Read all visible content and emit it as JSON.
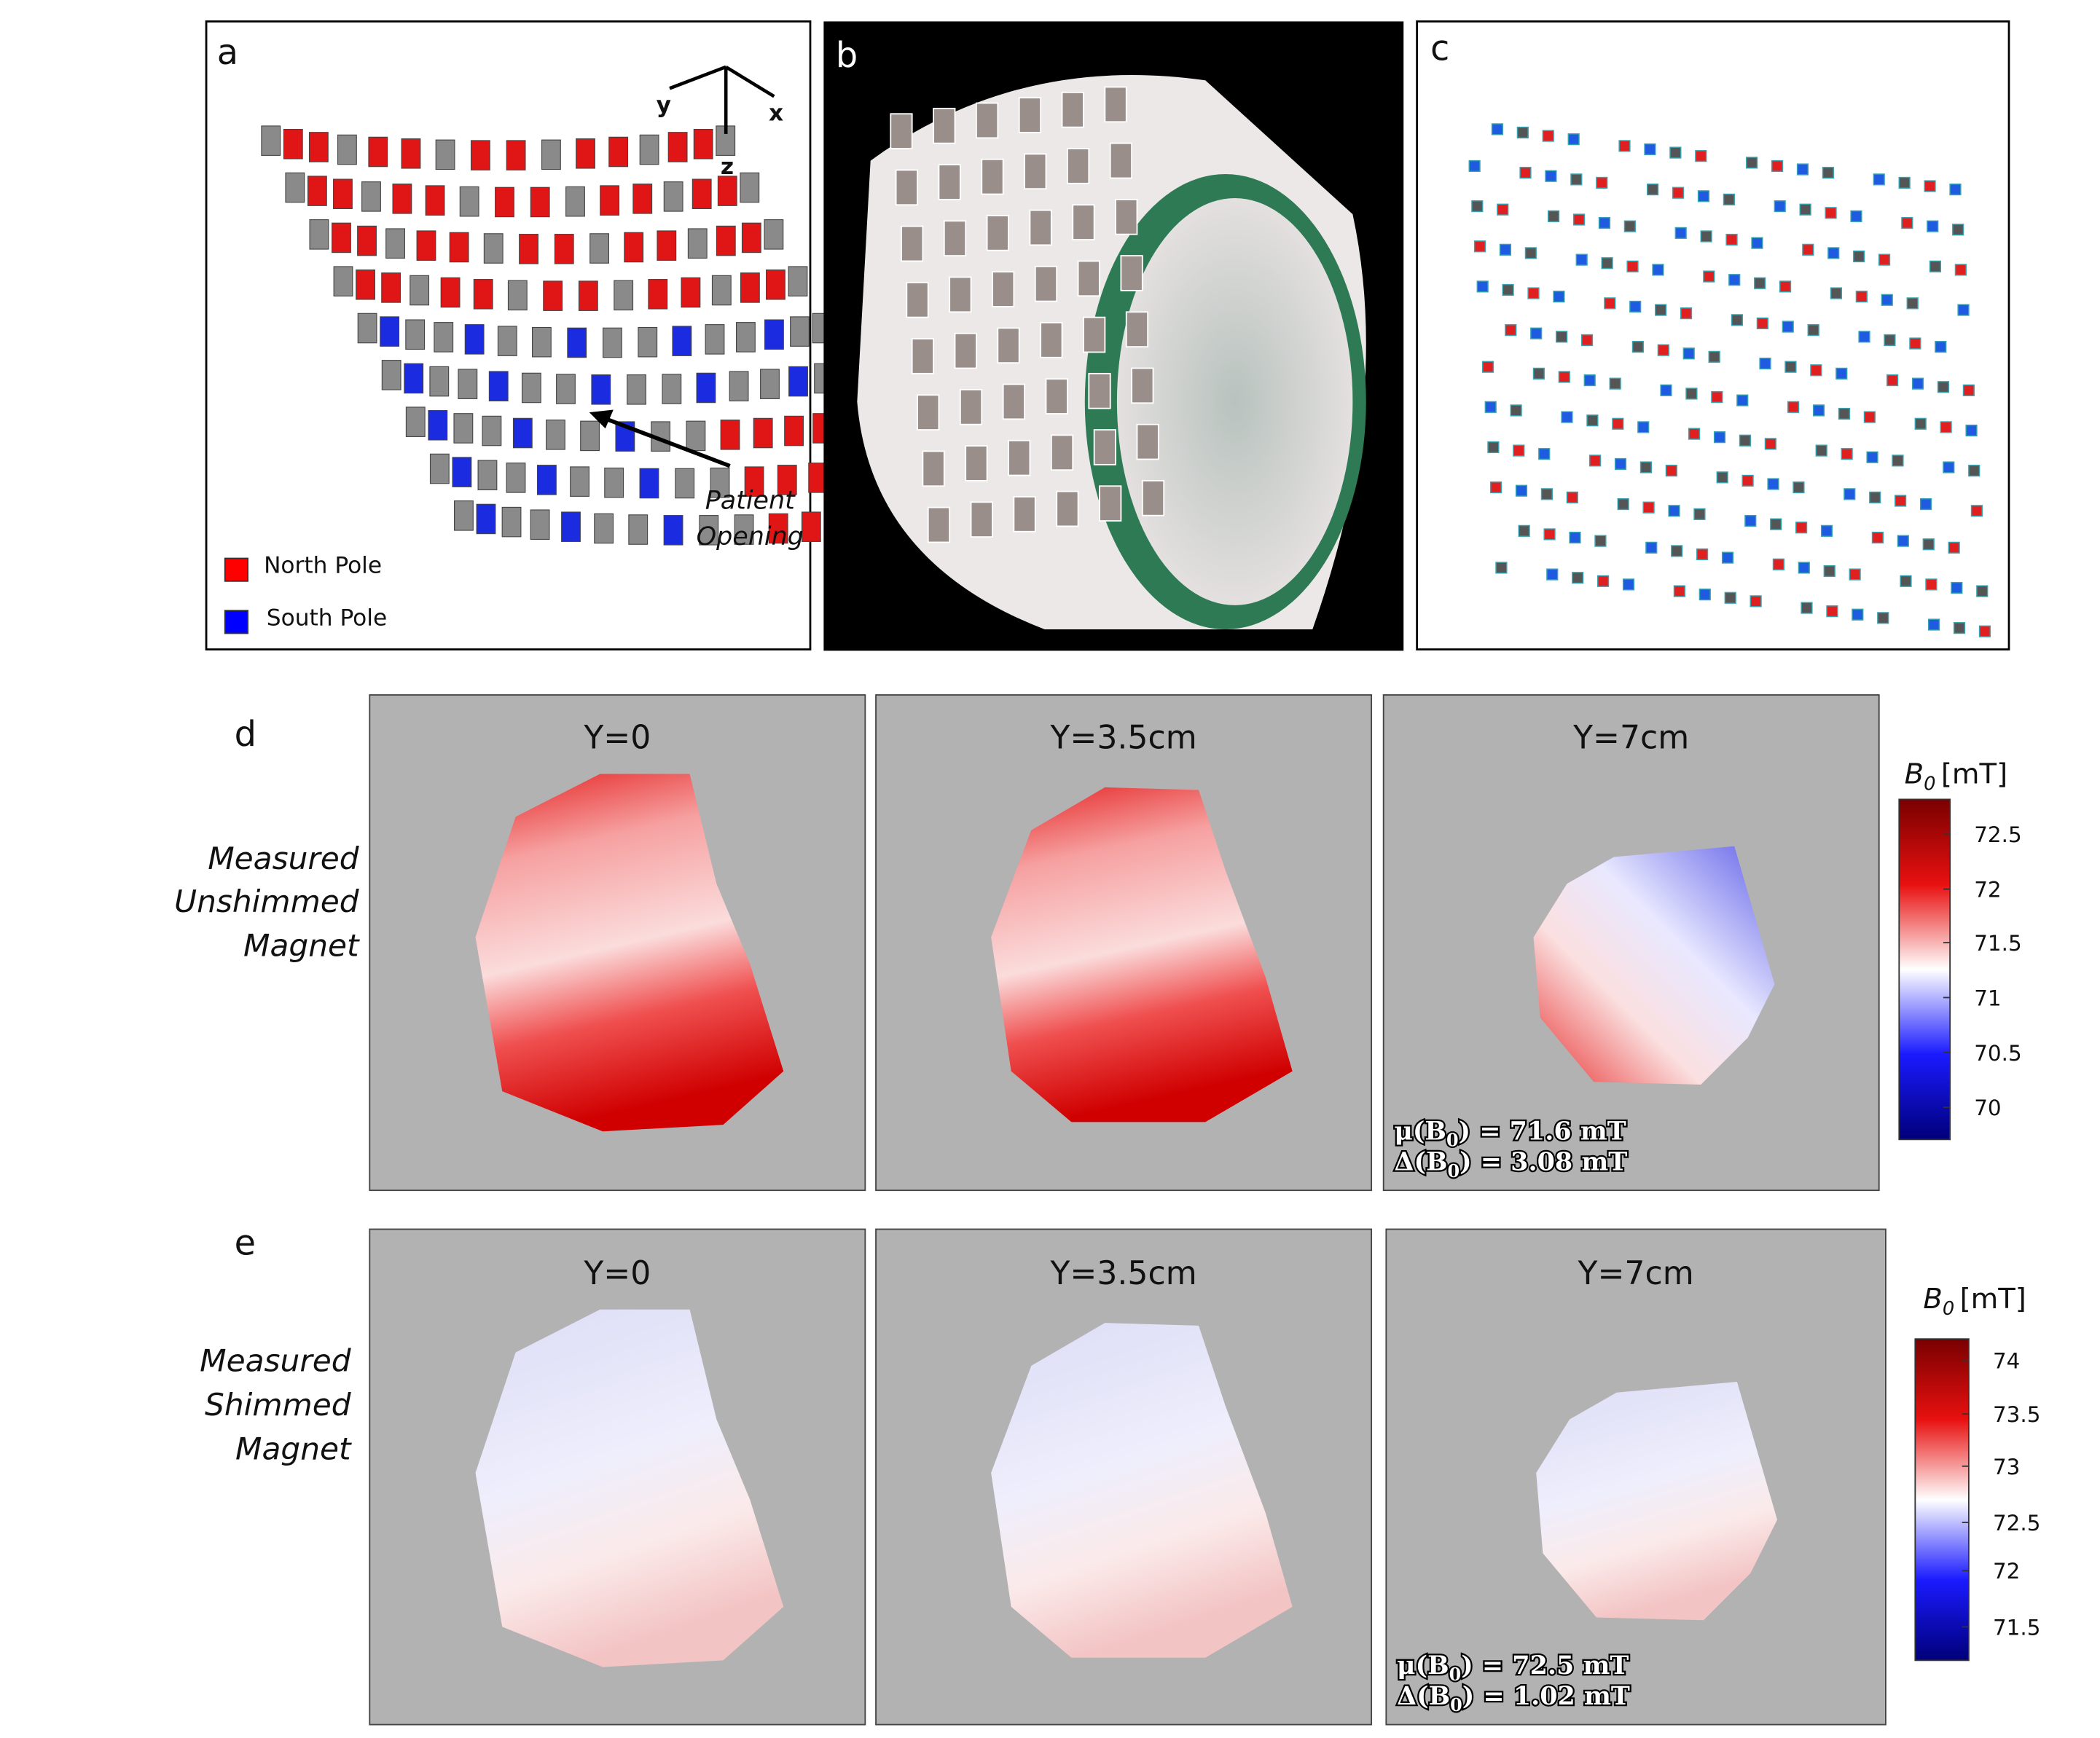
{
  "panel_a": {
    "label": "a",
    "axes": [
      "y",
      "x",
      "z"
    ],
    "annotation": [
      "Patient",
      "Opening"
    ],
    "legend": [
      "North Pole",
      "South Pole"
    ]
  },
  "panel_b": {
    "label": "b"
  },
  "panel_c": {
    "label": "c"
  },
  "panel_d": {
    "label": "d",
    "row_label": [
      "Measured",
      "Unshimmed",
      "Magnet"
    ],
    "maps": [
      "Y=0",
      "Y=3.5cm",
      "Y=7cm"
    ],
    "stats": [
      {
        "prefix": "μ(B",
        "subscript": "0",
        "suffix": ") = 71.6 mT"
      },
      {
        "prefix": "Δ(B",
        "subscript": "0",
        "suffix": ") = 3.08 mT"
      }
    ],
    "colorbar": {
      "symbol": "B",
      "subscript": "0",
      "unit": "[mT]",
      "ticks": [
        "72.5",
        "72",
        "71.5",
        "71",
        "70.5",
        "70"
      ]
    }
  },
  "panel_e": {
    "label": "e",
    "row_label": [
      "Measured",
      "Shimmed",
      "Magnet"
    ],
    "maps": [
      "Y=0",
      "Y=3.5cm",
      "Y=7cm"
    ],
    "stats": [
      {
        "prefix": "μ(B",
        "subscript": "0",
        "suffix": ") = 72.5 mT"
      },
      {
        "prefix": "Δ(B",
        "subscript": "0",
        "suffix": ") = 1.02 mT"
      }
    ],
    "colorbar": {
      "symbol": "B",
      "subscript": "0",
      "unit": "[mT]",
      "ticks": [
        "74",
        "73.5",
        "73",
        "72.5",
        "72",
        "71.5"
      ]
    }
  }
}
